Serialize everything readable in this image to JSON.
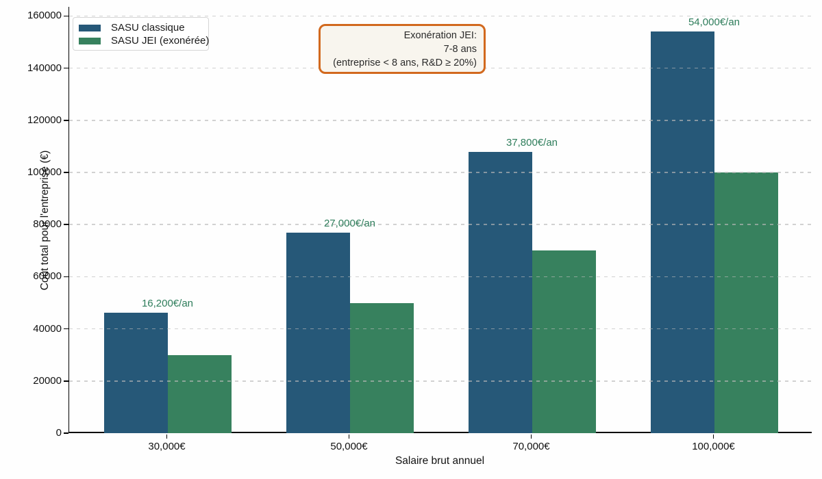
{
  "chart_data": {
    "type": "bar",
    "title": "",
    "xlabel": "Salaire brut annuel",
    "ylabel": "Coût total pour l'entreprise (€)",
    "categories": [
      "30,000€",
      "50,000€",
      "70,000€",
      "100,000€"
    ],
    "series": [
      {
        "name": "SASU classique",
        "color": "#265878",
        "values": [
          46200,
          77000,
          107800,
          154000
        ]
      },
      {
        "name": "SASU JEI (exonérée)",
        "color": "#37815E",
        "values": [
          30000,
          50000,
          70000,
          100000
        ]
      }
    ],
    "bar_annotations": {
      "labels": [
        "16,200€/an",
        "27,000€/an",
        "37,800€/an",
        "54,000€/an"
      ],
      "color": "#2E7D5B"
    },
    "ylim": [
      0,
      160000
    ],
    "yticks": [
      0,
      20000,
      40000,
      60000,
      80000,
      100000,
      120000,
      140000,
      160000
    ],
    "grid": "horizontal-dashed",
    "legend_position": "upper-left",
    "annotation_box": {
      "lines": [
        "Exonération JEI:",
        "7-8 ans",
        "(entreprise < 8 ans, R&D ≥ 20%)"
      ],
      "border_color": "#D2691E",
      "fill_color": "#F8F5EE"
    }
  }
}
